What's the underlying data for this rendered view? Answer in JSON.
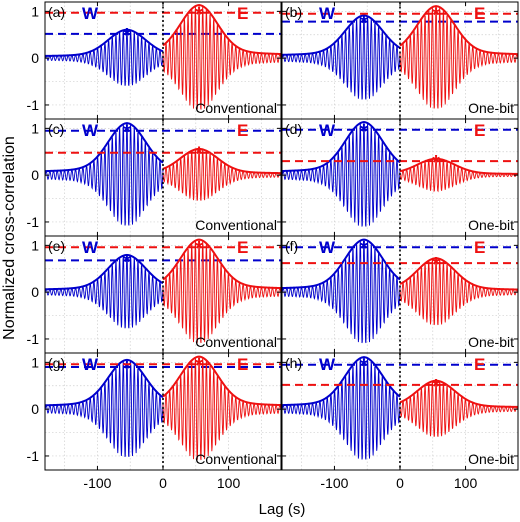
{
  "figure": {
    "ylabel": "Normalized cross-correlation",
    "xlabel": "Lag (s)",
    "station_labels": {
      "west": "W",
      "east": "E"
    },
    "colors": {
      "west": "#0000cc",
      "east": "#ee1111",
      "grid": "#cfcfcf",
      "zero_line": "#000000"
    }
  },
  "chart_data": [
    {
      "panel": "(a)",
      "type": "line",
      "method": "Conventional",
      "peak_W": 0.52,
      "peak_E": 0.97,
      "lag_W": -55,
      "lag_E": 55,
      "xlim": [
        -180,
        180
      ],
      "ylim": [
        -1.3,
        1.2
      ],
      "xticks": [
        -100,
        0,
        100
      ],
      "yticks": [
        -1,
        0,
        1
      ],
      "grid": true,
      "series": [
        {
          "name": "W",
          "color": "#0000cc"
        },
        {
          "name": "E",
          "color": "#ee1111"
        }
      ]
    },
    {
      "panel": "(b)",
      "type": "line",
      "method": "One-bit",
      "peak_W": 0.78,
      "peak_E": 0.95,
      "lag_W": -55,
      "lag_E": 55,
      "xlim": [
        -180,
        180
      ],
      "ylim": [
        -1.3,
        1.2
      ],
      "xticks": [
        -100,
        0,
        100
      ],
      "yticks": [
        -1,
        0,
        1
      ],
      "grid": true,
      "series": [
        {
          "name": "W",
          "color": "#0000cc"
        },
        {
          "name": "E",
          "color": "#ee1111"
        }
      ]
    },
    {
      "panel": "(c)",
      "type": "line",
      "method": "Conventional",
      "peak_W": 0.95,
      "peak_E": 0.48,
      "lag_W": -55,
      "lag_E": 55,
      "xlim": [
        -180,
        180
      ],
      "ylim": [
        -1.3,
        1.2
      ],
      "xticks": [
        -100,
        0,
        100
      ],
      "yticks": [
        -1,
        0,
        1
      ],
      "grid": true,
      "series": [
        {
          "name": "W",
          "color": "#0000cc"
        },
        {
          "name": "E",
          "color": "#ee1111"
        }
      ]
    },
    {
      "panel": "(d)",
      "type": "line",
      "method": "One-bit",
      "peak_W": 0.97,
      "peak_E": 0.3,
      "lag_W": -55,
      "lag_E": 55,
      "xlim": [
        -180,
        180
      ],
      "ylim": [
        -1.3,
        1.2
      ],
      "xticks": [
        -100,
        0,
        100
      ],
      "yticks": [
        -1,
        0,
        1
      ],
      "grid": true,
      "series": [
        {
          "name": "W",
          "color": "#0000cc"
        },
        {
          "name": "E",
          "color": "#ee1111"
        }
      ]
    },
    {
      "panel": "(e)",
      "type": "line",
      "method": "Conventional",
      "peak_W": 0.68,
      "peak_E": 0.96,
      "lag_W": -55,
      "lag_E": 55,
      "xlim": [
        -180,
        180
      ],
      "ylim": [
        -1.3,
        1.2
      ],
      "xticks": [
        -100,
        0,
        100
      ],
      "yticks": [
        -1,
        0,
        1
      ],
      "grid": true,
      "series": [
        {
          "name": "W",
          "color": "#0000cc"
        },
        {
          "name": "E",
          "color": "#ee1111"
        }
      ]
    },
    {
      "panel": "(f)",
      "type": "line",
      "method": "One-bit",
      "peak_W": 0.96,
      "peak_E": 0.62,
      "lag_W": -55,
      "lag_E": 55,
      "xlim": [
        -180,
        180
      ],
      "ylim": [
        -1.3,
        1.2
      ],
      "xticks": [
        -100,
        0,
        100
      ],
      "yticks": [
        -1,
        0,
        1
      ],
      "grid": true,
      "series": [
        {
          "name": "W",
          "color": "#0000cc"
        },
        {
          "name": "E",
          "color": "#ee1111"
        }
      ]
    },
    {
      "panel": "(g)",
      "type": "line",
      "method": "Conventional",
      "peak_W": 0.9,
      "peak_E": 0.96,
      "lag_W": -55,
      "lag_E": 55,
      "xlim": [
        -180,
        180
      ],
      "ylim": [
        -1.3,
        1.2
      ],
      "xticks": [
        -100,
        0,
        100
      ],
      "yticks": [
        -1,
        0,
        1
      ],
      "grid": true,
      "series": [
        {
          "name": "W",
          "color": "#0000cc"
        },
        {
          "name": "E",
          "color": "#ee1111"
        }
      ]
    },
    {
      "panel": "(h)",
      "type": "line",
      "method": "One-bit",
      "peak_W": 0.95,
      "peak_E": 0.52,
      "lag_W": -55,
      "lag_E": 55,
      "xlim": [
        -180,
        180
      ],
      "ylim": [
        -1.3,
        1.2
      ],
      "xticks": [
        -100,
        0,
        100
      ],
      "yticks": [
        -1,
        0,
        1
      ],
      "grid": true,
      "series": [
        {
          "name": "W",
          "color": "#0000cc"
        },
        {
          "name": "E",
          "color": "#ee1111"
        }
      ]
    }
  ]
}
